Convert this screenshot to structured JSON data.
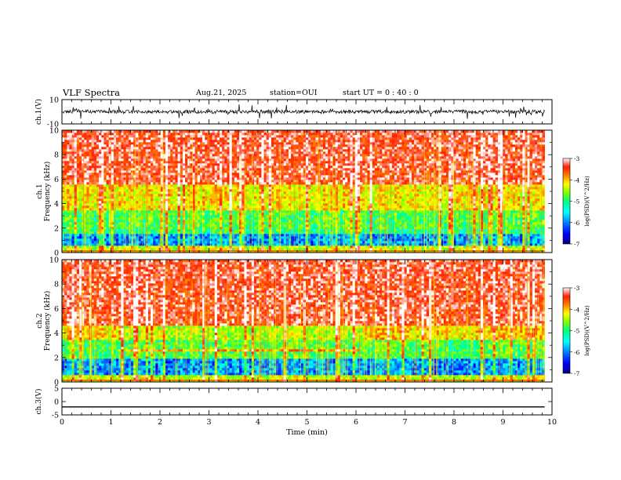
{
  "header": {
    "title": "VLF Spectra",
    "date": "Aug.21, 2025",
    "station": "station=OUI",
    "start_label": "start UT =",
    "start_time": "0 : 40 : 0"
  },
  "colors": {
    "colormap": [
      "#000080",
      "#0000ff",
      "#0080ff",
      "#00ffff",
      "#00ff80",
      "#80ff00",
      "#ffff00",
      "#ff8000",
      "#ff2000",
      "#ffffff"
    ],
    "trace": "#000000"
  },
  "chart_data": [
    {
      "type": "line",
      "name": "channel-1-waveform",
      "ylabel": "ch.1(V)",
      "ylim": [
        -10,
        10
      ],
      "yticks": [
        "10",
        "-10"
      ],
      "xlim": [
        0,
        10
      ],
      "data_extent_min": 9.85,
      "series": [
        {
          "baseline": 0,
          "noise_amplitude": 1.5,
          "spike_amplitude": 5
        }
      ]
    },
    {
      "type": "heatmap",
      "name": "channel-1-spectrogram",
      "ylabel": "ch.1 Frequency (kHz)",
      "ylim": [
        0,
        10
      ],
      "yticks": [
        "0",
        "2",
        "4",
        "6",
        "8",
        "10"
      ],
      "xlim": [
        0,
        10
      ],
      "data_extent_min": 9.85,
      "colorbar": {
        "label": "log(PSD)(V^2/Hz)",
        "min": -7,
        "max": -3,
        "ticks": [
          "-3",
          "-4",
          "-5",
          "-6",
          "-7"
        ]
      },
      "bands": [
        {
          "freq_khz": [
            0,
            0.5
          ],
          "log_psd": -4.5
        },
        {
          "freq_khz": [
            0.5,
            1.6
          ],
          "log_psd": -6.0
        },
        {
          "freq_khz": [
            1.6,
            2.0
          ],
          "log_psd": -5.2
        },
        {
          "freq_khz": [
            2.0,
            3.5
          ],
          "log_psd": -5.0
        },
        {
          "freq_khz": [
            3.5,
            5.5
          ],
          "log_psd": -4.3
        },
        {
          "freq_khz": [
            5.5,
            10
          ],
          "log_psd": -3.4
        }
      ]
    },
    {
      "type": "heatmap",
      "name": "channel-2-spectrogram",
      "ylabel": "ch.2 Frequency (kHz)",
      "ylim": [
        0,
        10
      ],
      "yticks": [
        "0",
        "2",
        "4",
        "6",
        "8",
        "10"
      ],
      "xlim": [
        0,
        10
      ],
      "data_extent_min": 9.85,
      "colorbar": {
        "label": "log(PSD)(V^2/Hz)",
        "min": -7,
        "max": -3,
        "ticks": [
          "-3",
          "-4",
          "-5",
          "-6",
          "-7"
        ]
      },
      "bands": [
        {
          "freq_khz": [
            0,
            0.5
          ],
          "log_psd": -4.5
        },
        {
          "freq_khz": [
            0.5,
            2.0
          ],
          "log_psd": -6.0
        },
        {
          "freq_khz": [
            2.0,
            3.5
          ],
          "log_psd": -5.0
        },
        {
          "freq_khz": [
            3.5,
            4.6
          ],
          "log_psd": -4.2
        },
        {
          "freq_khz": [
            4.6,
            10
          ],
          "log_psd": -3.4
        }
      ],
      "enhanced_line": {
        "freq_khz": 2.6,
        "t_start_min": 1.3,
        "t_end_min": 6.1,
        "log_psd": -4.0
      },
      "raised_floor": {
        "freq_khz": 4.6,
        "t_start_min": 1.2,
        "t_end_min": 6.2
      }
    },
    {
      "type": "line",
      "name": "channel-3-waveform",
      "ylabel": "ch.3(V)",
      "ylim": [
        -5,
        5
      ],
      "yticks": [
        "5",
        "0",
        "-5"
      ],
      "xlim": [
        0,
        10
      ],
      "data_extent_min": 9.85,
      "series": [
        {
          "baseline": -2,
          "noise_amplitude": 0
        }
      ]
    }
  ],
  "xaxis": {
    "label": "Time (min)",
    "ticks": [
      "0",
      "1",
      "2",
      "3",
      "4",
      "5",
      "6",
      "7",
      "8",
      "9",
      "10"
    ]
  }
}
